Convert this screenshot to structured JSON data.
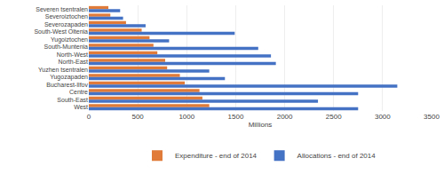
{
  "chart_data": {
    "type": "bar",
    "orientation": "horizontal",
    "categories": [
      "Severen tsentralen",
      "Severoiztochen",
      "Severozapaden",
      "South-West Oltenia",
      "Yugoiztochen",
      "South-Muntenia",
      "North-West",
      "North-East",
      "Yuzhen tsentralen",
      "Yugozapaden",
      "Bucharest-Ilfov",
      "Centre",
      "South-East",
      "West"
    ],
    "series": [
      {
        "name": "Expenditure - end of 2014",
        "color": "#E07B39",
        "values": [
          200,
          220,
          380,
          540,
          620,
          660,
          700,
          780,
          800,
          930,
          980,
          1130,
          1160,
          1230
        ]
      },
      {
        "name": "Allocations - end of 2014",
        "color": "#4472C4",
        "values": [
          320,
          350,
          580,
          1490,
          820,
          1730,
          1860,
          1910,
          1230,
          1390,
          3150,
          2750,
          2340,
          2750
        ]
      }
    ],
    "xlabel": "Millions",
    "xlim": [
      0,
      3500
    ],
    "xticks": [
      0,
      500,
      1000,
      1500,
      2000,
      2500,
      3000,
      3500
    ],
    "grid": true,
    "legend": "bottom"
  }
}
